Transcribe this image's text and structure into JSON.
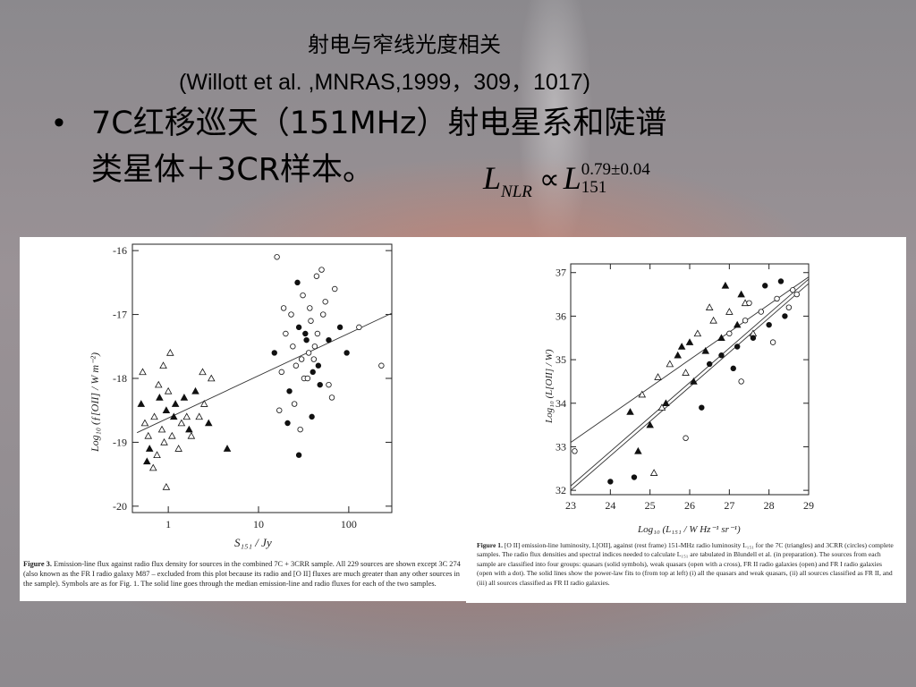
{
  "slide": {
    "title_cn": "射电与窄线光度相关",
    "title_ref": "(Willott et al. ,MNRAS,1999，309，1017)",
    "bullet_symbol": "•",
    "bullet_line1": "7C红移巡天（151MHz）射电星系和陡谱",
    "bullet_line2": "类星体＋3CR样本。",
    "formula": {
      "lhs_main": "L",
      "lhs_sub": "NLR",
      "relation": "∝",
      "rhs_main": "L",
      "rhs_sub": "151",
      "rhs_exp": "0.79±0.04"
    }
  },
  "figure3": {
    "caption_label": "Figure 3.",
    "caption_text": "Emission-line flux against radio flux density for sources in the combined 7C + 3CRR sample. All 229 sources are shown except 3C 274 (also known as the FR I radio galaxy M87 – excluded from this plot because its radio and [O II] fluxes are much greater than any other sources in the sample). Symbols are as for Fig. 1. The solid line goes through the median emission-line and radio fluxes for each of the two samples.",
    "ylabel": "Log₁₀ (ƒ[OII] / W m⁻²)",
    "xlabel": "S₁₅₁ / Jy",
    "yticks": [
      "-16",
      "-17",
      "-18",
      "-19",
      "-20"
    ],
    "xticks": [
      "1",
      "10",
      "100"
    ]
  },
  "figure1": {
    "caption_label": "Figure 1.",
    "caption_text": "[O II] emission-line luminosity, L[OII], against (rest frame) 151-MHz radio luminosity L₁₅₁ for the 7C (triangles) and 3CRR (circles) complete samples. The radio flux densities and spectral indices needed to calculate L₁₅₁ are tabulated in Blundell et al. (in preparation). The sources from each sample are classified into four groups: quasars (solid symbols), weak quasars (open with a cross), FR II radio galaxies (open) and FR I radio galaxies (open with a dot). The solid lines show the power-law fits to (from top at left) (i) all the quasars and weak quasars, (ii) all sources classified as FR II, and (iii) all sources classified as FR II radio galaxies.",
    "ylabel": "Log₁₀ (L[OII] / W)",
    "xlabel": "Log₁₀ (L₁₅₁ / W Hz⁻¹ sr⁻¹)",
    "yticks": [
      "37",
      "36",
      "35",
      "34",
      "33",
      "32"
    ],
    "xticks": [
      "23",
      "24",
      "25",
      "26",
      "27",
      "28",
      "29"
    ]
  },
  "chart_data": [
    {
      "type": "scatter",
      "title": "",
      "xlabel": "S₁₅₁ / Jy",
      "ylabel": "Log₁₀ (ƒ[OII] / W m⁻²)",
      "x_scale": "log",
      "xlim": [
        0.4,
        300
      ],
      "ylim": [
        -20.1,
        -15.9
      ],
      "fit_line": [
        [
          0.45,
          -18.85
        ],
        [
          300,
          -16.98
        ]
      ],
      "series": [
        {
          "marker": "triangle",
          "points": [
            [
              0.5,
              -18.4
            ],
            [
              0.55,
              -18.7
            ],
            [
              0.6,
              -18.9
            ],
            [
              0.62,
              -19.1
            ],
            [
              0.7,
              -18.6
            ],
            [
              0.75,
              -19.2
            ],
            [
              0.8,
              -18.3
            ],
            [
              0.85,
              -18.8
            ],
            [
              0.9,
              -19.0
            ],
            [
              0.95,
              -18.5
            ],
            [
              1.0,
              -18.2
            ],
            [
              1.1,
              -18.9
            ],
            [
              1.2,
              -18.4
            ],
            [
              1.3,
              -19.1
            ],
            [
              1.4,
              -18.7
            ],
            [
              1.5,
              -18.3
            ],
            [
              1.6,
              -18.6
            ],
            [
              1.8,
              -18.9
            ],
            [
              2.0,
              -18.2
            ],
            [
              2.2,
              -18.6
            ],
            [
              2.5,
              -18.4
            ],
            [
              2.8,
              -18.7
            ],
            [
              3.0,
              -18.0
            ],
            [
              1.05,
              -17.6
            ],
            [
              0.58,
              -19.3
            ],
            [
              0.68,
              -19.4
            ],
            [
              0.78,
              -18.1
            ],
            [
              1.15,
              -18.6
            ],
            [
              0.52,
              -17.9
            ],
            [
              0.88,
              -17.8
            ],
            [
              1.7,
              -18.8
            ],
            [
              2.4,
              -17.9
            ],
            [
              0.95,
              -19.7
            ],
            [
              4.5,
              -19.1
            ]
          ]
        },
        {
          "marker": "circle",
          "points": [
            [
              15,
              -17.6
            ],
            [
              18,
              -17.9
            ],
            [
              20,
              -17.3
            ],
            [
              22,
              -18.2
            ],
            [
              24,
              -17.5
            ],
            [
              26,
              -17.8
            ],
            [
              28,
              -17.2
            ],
            [
              30,
              -17.7
            ],
            [
              32,
              -18.0
            ],
            [
              34,
              -17.4
            ],
            [
              36,
              -17.6
            ],
            [
              38,
              -17.1
            ],
            [
              40,
              -17.9
            ],
            [
              42,
              -17.5
            ],
            [
              45,
              -17.3
            ],
            [
              48,
              -18.1
            ],
            [
              52,
              -17.0
            ],
            [
              55,
              -16.8
            ],
            [
              60,
              -17.4
            ],
            [
              65,
              -18.3
            ],
            [
              70,
              -16.6
            ],
            [
              80,
              -17.2
            ],
            [
              17,
              -18.5
            ],
            [
              19,
              -16.9
            ],
            [
              21,
              -18.7
            ],
            [
              23,
              -17.0
            ],
            [
              25,
              -18.4
            ],
            [
              27,
              -16.5
            ],
            [
              29,
              -18.8
            ],
            [
              31,
              -16.7
            ],
            [
              33,
              -17.3
            ],
            [
              35,
              -18.0
            ],
            [
              37,
              -16.9
            ],
            [
              39,
              -18.6
            ],
            [
              41,
              -17.7
            ],
            [
              44,
              -16.4
            ],
            [
              46,
              -17.8
            ],
            [
              50,
              -16.3
            ],
            [
              16,
              -16.1
            ],
            [
              95,
              -17.6
            ],
            [
              130,
              -17.2
            ],
            [
              230,
              -17.8
            ],
            [
              28,
              -19.2
            ],
            [
              60,
              -18.1
            ]
          ]
        }
      ]
    },
    {
      "type": "scatter",
      "title": "",
      "xlabel": "Log₁₀ (L₁₅₁ / W Hz⁻¹ sr⁻¹)",
      "ylabel": "Log₁₀ (L[OII] / W)",
      "xlim": [
        23,
        29
      ],
      "ylim": [
        31.9,
        37.2
      ],
      "fit_lines": [
        [
          [
            23,
            33.1
          ],
          [
            29,
            36.9
          ]
        ],
        [
          [
            23,
            32.1
          ],
          [
            29,
            36.85
          ]
        ],
        [
          [
            23,
            32.0
          ],
          [
            29,
            36.75
          ]
        ]
      ],
      "series": [
        {
          "marker": "triangle",
          "points": [
            [
              24.5,
              33.8
            ],
            [
              24.8,
              34.2
            ],
            [
              25.0,
              33.5
            ],
            [
              25.2,
              34.6
            ],
            [
              25.4,
              34.0
            ],
            [
              25.5,
              34.9
            ],
            [
              25.7,
              35.1
            ],
            [
              25.9,
              34.7
            ],
            [
              26.0,
              35.4
            ],
            [
              26.2,
              35.6
            ],
            [
              26.4,
              35.2
            ],
            [
              26.6,
              35.9
            ],
            [
              26.8,
              35.5
            ],
            [
              27.0,
              36.1
            ],
            [
              27.2,
              35.8
            ],
            [
              27.4,
              36.3
            ],
            [
              26.1,
              34.5
            ],
            [
              25.3,
              33.9
            ],
            [
              25.8,
              35.3
            ],
            [
              26.5,
              36.2
            ],
            [
              27.3,
              36.5
            ],
            [
              27.6,
              35.6
            ],
            [
              24.7,
              32.9
            ],
            [
              25.1,
              32.4
            ],
            [
              26.9,
              36.7
            ]
          ]
        },
        {
          "marker": "circle",
          "points": [
            [
              26.8,
              35.1
            ],
            [
              27.0,
              35.6
            ],
            [
              27.2,
              35.3
            ],
            [
              27.4,
              35.9
            ],
            [
              27.6,
              35.5
            ],
            [
              27.8,
              36.1
            ],
            [
              28.0,
              35.8
            ],
            [
              28.2,
              36.4
            ],
            [
              28.4,
              36.0
            ],
            [
              28.6,
              36.6
            ],
            [
              27.1,
              34.8
            ],
            [
              27.5,
              36.3
            ],
            [
              27.9,
              36.7
            ],
            [
              28.1,
              35.4
            ],
            [
              28.3,
              36.8
            ],
            [
              27.3,
              34.5
            ],
            [
              26.5,
              34.9
            ],
            [
              28.5,
              36.2
            ],
            [
              26.3,
              33.9
            ],
            [
              25.9,
              33.2
            ],
            [
              24.6,
              32.3
            ],
            [
              23.1,
              32.9
            ],
            [
              24.0,
              32.2
            ],
            [
              28.7,
              36.5
            ]
          ]
        }
      ]
    }
  ]
}
